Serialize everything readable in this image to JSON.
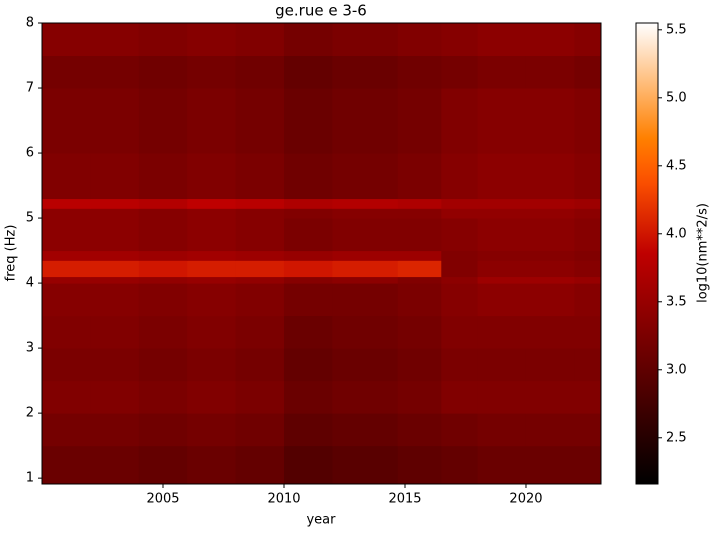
{
  "chart_data": {
    "type": "heatmap",
    "title": "ge.rue e 3-6",
    "xlabel": "year",
    "ylabel": "freq (Hz)",
    "colorbar_label": "log10(nm**2/s)",
    "colormap": "gist_heat",
    "x_edges": [
      2000,
      2002,
      2004,
      2006,
      2008,
      2010,
      2012,
      2014.7,
      2016.5,
      2018,
      2020,
      2022,
      2023.1
    ],
    "y_edges": [
      0.91,
      1.5,
      2.0,
      2.5,
      3.0,
      3.5,
      4.0,
      4.1,
      4.35,
      4.5,
      5.0,
      5.15,
      5.3,
      6.0,
      7.0,
      7.5,
      8.0
    ],
    "z": [
      [
        3.1,
        3.1,
        3.05,
        3.1,
        3.05,
        2.9,
        2.95,
        3.0,
        3.05,
        3.1,
        3.1,
        3.1
      ],
      [
        3.2,
        3.2,
        3.15,
        3.2,
        3.15,
        3.0,
        3.05,
        3.1,
        3.15,
        3.2,
        3.2,
        3.2
      ],
      [
        3.3,
        3.3,
        3.25,
        3.3,
        3.25,
        3.1,
        3.15,
        3.2,
        3.3,
        3.3,
        3.3,
        3.3
      ],
      [
        3.25,
        3.25,
        3.2,
        3.25,
        3.2,
        3.05,
        3.1,
        3.15,
        3.25,
        3.25,
        3.25,
        3.25
      ],
      [
        3.3,
        3.3,
        3.25,
        3.3,
        3.25,
        3.1,
        3.15,
        3.2,
        3.3,
        3.3,
        3.3,
        3.3
      ],
      [
        3.35,
        3.35,
        3.3,
        3.35,
        3.3,
        3.2,
        3.2,
        3.25,
        3.35,
        3.4,
        3.4,
        3.35
      ],
      [
        3.5,
        3.5,
        3.45,
        3.5,
        3.45,
        3.35,
        3.4,
        3.3,
        3.4,
        3.55,
        3.55,
        3.5
      ],
      [
        4.05,
        4.05,
        4.0,
        4.05,
        4.05,
        4.0,
        4.05,
        4.1,
        3.3,
        3.4,
        3.4,
        3.35
      ],
      [
        3.6,
        3.6,
        3.55,
        3.6,
        3.55,
        3.5,
        3.55,
        3.55,
        3.3,
        3.35,
        3.35,
        3.3
      ],
      [
        3.4,
        3.4,
        3.35,
        3.4,
        3.35,
        3.25,
        3.3,
        3.3,
        3.35,
        3.4,
        3.4,
        3.35
      ],
      [
        3.4,
        3.4,
        3.35,
        3.4,
        3.35,
        3.3,
        3.35,
        3.35,
        3.45,
        3.45,
        3.45,
        3.4
      ],
      [
        3.8,
        3.8,
        3.75,
        3.85,
        3.8,
        3.7,
        3.75,
        3.7,
        3.6,
        3.6,
        3.6,
        3.55
      ],
      [
        3.3,
        3.3,
        3.25,
        3.3,
        3.25,
        3.15,
        3.2,
        3.25,
        3.35,
        3.4,
        3.4,
        3.35
      ],
      [
        3.25,
        3.25,
        3.2,
        3.25,
        3.2,
        3.1,
        3.15,
        3.2,
        3.3,
        3.35,
        3.35,
        3.3
      ],
      [
        3.2,
        3.2,
        3.15,
        3.2,
        3.15,
        3.05,
        3.1,
        3.15,
        3.2,
        3.25,
        3.25,
        3.2
      ],
      [
        3.35,
        3.35,
        3.3,
        3.35,
        3.3,
        3.2,
        3.25,
        3.3,
        3.35,
        3.4,
        3.4,
        3.35
      ]
    ],
    "xlim": [
      2000,
      2023.1
    ],
    "ylim": [
      0.91,
      8
    ],
    "clim": [
      2.16,
      5.55
    ],
    "xticks": [
      2005,
      2010,
      2015,
      2020
    ],
    "yticks": [
      1,
      2,
      3,
      4,
      5,
      6,
      7,
      8
    ],
    "cticks": [
      2.5,
      {
        "value": 3,
        "label": "3.0"
      },
      3.5,
      {
        "value": 4,
        "label": "4.0"
      },
      4.5,
      {
        "value": 5,
        "label": "5.0"
      },
      5.5
    ]
  }
}
